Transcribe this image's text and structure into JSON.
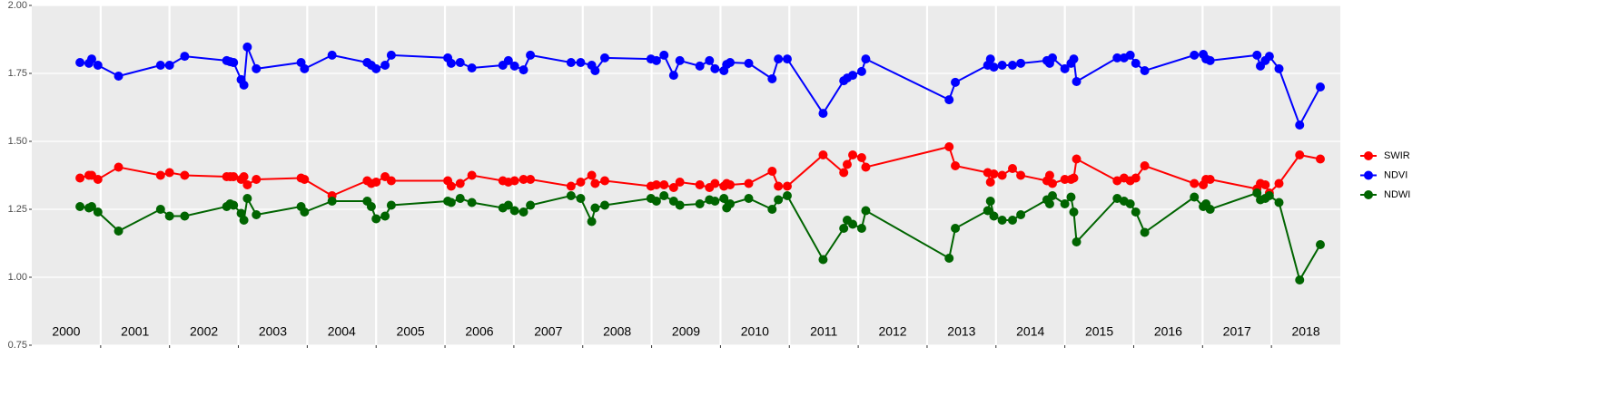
{
  "chart_data": {
    "type": "line",
    "x": [
      2000.7,
      2000.83,
      2000.87,
      2000.96,
      2001.26,
      2001.87,
      2002.0,
      2002.22,
      2002.83,
      2002.88,
      2002.93,
      2003.04,
      2003.08,
      2003.13,
      2003.26,
      2003.91,
      2003.96,
      2004.36,
      2004.87,
      2004.93,
      2005.0,
      2005.13,
      2005.22,
      2006.04,
      2006.09,
      2006.22,
      2006.39,
      2006.84,
      2006.92,
      2007.01,
      2007.14,
      2007.24,
      2007.83,
      2007.97,
      2008.13,
      2008.18,
      2008.32,
      2008.99,
      2009.07,
      2009.18,
      2009.32,
      2009.41,
      2009.7,
      2009.84,
      2009.92,
      2010.05,
      2010.09,
      2010.14,
      2010.41,
      2010.75,
      2010.84,
      2010.97,
      2011.49,
      2011.79,
      2011.84,
      2011.92,
      2012.05,
      2012.11,
      2013.32,
      2013.41,
      2013.88,
      2013.92,
      2013.97,
      2014.09,
      2014.24,
      2014.36,
      2014.74,
      2014.78,
      2014.82,
      2015.0,
      2015.09,
      2015.13,
      2015.17,
      2015.76,
      2015.86,
      2015.95,
      2016.03,
      2016.16,
      2016.88,
      2017.01,
      2017.05,
      2017.11,
      2017.79,
      2017.84,
      2017.91,
      2017.97,
      2018.11,
      2018.41,
      2018.71
    ],
    "series": [
      {
        "name": "SWIR",
        "color": "#ff0000",
        "values": [
          1.365,
          1.375,
          1.375,
          1.36,
          1.405,
          1.375,
          1.385,
          1.375,
          1.37,
          1.37,
          1.37,
          1.36,
          1.37,
          1.34,
          1.36,
          1.365,
          1.36,
          1.3,
          1.355,
          1.345,
          1.35,
          1.37,
          1.355,
          1.355,
          1.335,
          1.345,
          1.375,
          1.355,
          1.35,
          1.355,
          1.36,
          1.36,
          1.335,
          1.35,
          1.375,
          1.345,
          1.355,
          1.335,
          1.34,
          1.34,
          1.33,
          1.35,
          1.34,
          1.33,
          1.345,
          1.335,
          1.345,
          1.34,
          1.345,
          1.39,
          1.335,
          1.335,
          1.45,
          1.385,
          1.415,
          1.45,
          1.44,
          1.405,
          1.48,
          1.41,
          1.385,
          1.35,
          1.38,
          1.375,
          1.4,
          1.375,
          1.355,
          1.375,
          1.345,
          1.36,
          1.36,
          1.365,
          1.435,
          1.355,
          1.365,
          1.355,
          1.365,
          1.41,
          1.345,
          1.34,
          1.36,
          1.36,
          1.325,
          1.345,
          1.34,
          1.31,
          1.345,
          1.45,
          1.435
        ]
      },
      {
        "name": "NDVI",
        "color": "#0000ff",
        "values": [
          1.79,
          1.787,
          1.803,
          1.78,
          1.74,
          1.78,
          1.78,
          1.813,
          1.797,
          1.793,
          1.79,
          1.727,
          1.707,
          1.847,
          1.767,
          1.79,
          1.767,
          1.817,
          1.79,
          1.78,
          1.767,
          1.78,
          1.817,
          1.807,
          1.787,
          1.79,
          1.77,
          1.78,
          1.797,
          1.777,
          1.763,
          1.817,
          1.79,
          1.79,
          1.78,
          1.76,
          1.807,
          1.803,
          1.797,
          1.817,
          1.743,
          1.797,
          1.777,
          1.797,
          1.767,
          1.76,
          1.783,
          1.79,
          1.787,
          1.73,
          1.803,
          1.803,
          1.603,
          1.723,
          1.733,
          1.743,
          1.757,
          1.803,
          1.653,
          1.717,
          1.78,
          1.803,
          1.773,
          1.78,
          1.78,
          1.787,
          1.797,
          1.787,
          1.807,
          1.767,
          1.787,
          1.803,
          1.72,
          1.807,
          1.807,
          1.817,
          1.787,
          1.76,
          1.817,
          1.82,
          1.803,
          1.797,
          1.817,
          1.777,
          1.797,
          1.813,
          1.767,
          1.56,
          1.7
        ]
      },
      {
        "name": "NDWI",
        "color": "#006400",
        "values": [
          1.26,
          1.255,
          1.26,
          1.24,
          1.17,
          1.25,
          1.225,
          1.225,
          1.26,
          1.27,
          1.265,
          1.235,
          1.21,
          1.29,
          1.23,
          1.26,
          1.24,
          1.28,
          1.28,
          1.26,
          1.215,
          1.225,
          1.265,
          1.28,
          1.275,
          1.29,
          1.275,
          1.255,
          1.265,
          1.245,
          1.24,
          1.265,
          1.3,
          1.29,
          1.205,
          1.255,
          1.265,
          1.29,
          1.28,
          1.3,
          1.28,
          1.265,
          1.27,
          1.285,
          1.28,
          1.29,
          1.255,
          1.27,
          1.29,
          1.25,
          1.285,
          1.3,
          1.065,
          1.18,
          1.21,
          1.195,
          1.18,
          1.245,
          1.07,
          1.18,
          1.245,
          1.28,
          1.225,
          1.21,
          1.21,
          1.23,
          1.285,
          1.27,
          1.3,
          1.27,
          1.295,
          1.24,
          1.13,
          1.29,
          1.28,
          1.27,
          1.24,
          1.165,
          1.295,
          1.26,
          1.27,
          1.25,
          1.31,
          1.285,
          1.29,
          1.3,
          1.275,
          0.99,
          1.12
        ]
      }
    ],
    "xlim": [
      2000,
      2019
    ],
    "xticks": [
      2001,
      2002,
      2003,
      2004,
      2005,
      2006,
      2007,
      2008,
      2009,
      2010,
      2011,
      2012,
      2013,
      2014,
      2015,
      2016,
      2017,
      2018
    ],
    "year_labels": [
      "2000",
      "2001",
      "2002",
      "2003",
      "2004",
      "2005",
      "2006",
      "2007",
      "2008",
      "2009",
      "2010",
      "2011",
      "2012",
      "2013",
      "2014",
      "2015",
      "2016",
      "2017",
      "2018"
    ],
    "ylim": [
      0.75,
      2.0
    ],
    "yticks": [
      {
        "value": 0.75,
        "label": "0.75"
      },
      {
        "value": 1.0,
        "label": "1.00"
      },
      {
        "value": 1.25,
        "label": "1.25"
      },
      {
        "value": 1.5,
        "label": "1.50"
      },
      {
        "value": 1.75,
        "label": "1.75"
      },
      {
        "value": 2.0,
        "label": "2.00"
      }
    ],
    "grid": true,
    "legend": "right"
  }
}
